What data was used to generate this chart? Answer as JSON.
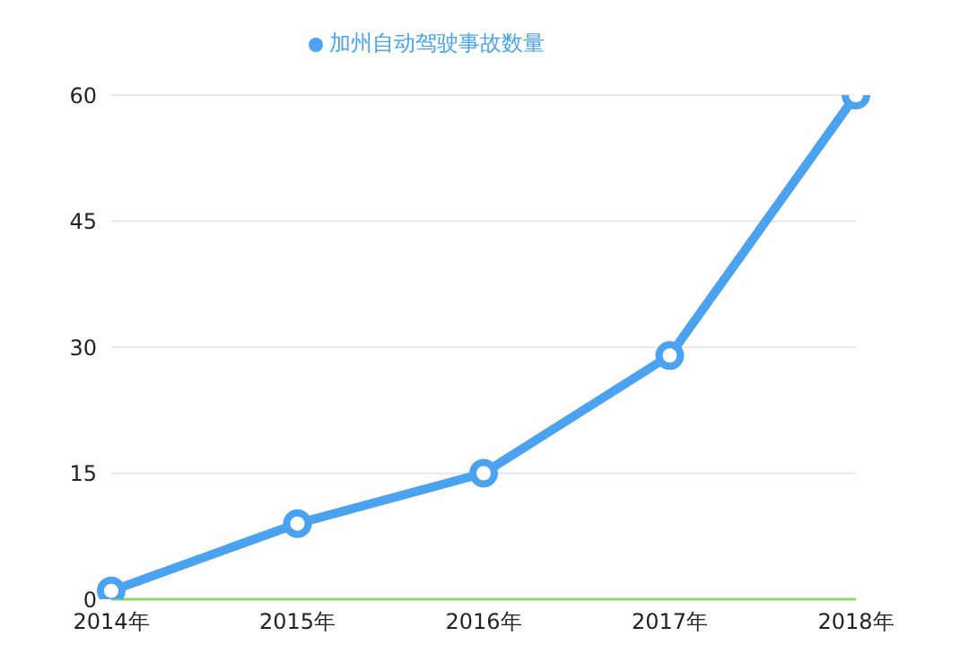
{
  "chart_data": {
    "type": "line",
    "categories": [
      "2014年",
      "2015年",
      "2016年",
      "2017年",
      "2018年"
    ],
    "series": [
      {
        "name": "加州自动驾驶事故数量",
        "color": "#4ba3f0",
        "values": [
          1,
          9,
          15,
          29,
          60
        ]
      }
    ],
    "ylim": [
      0,
      60
    ],
    "yticks": [
      0,
      15,
      30,
      45,
      60
    ],
    "grid": "y",
    "legend": "top",
    "marker": "circle",
    "line_style": "solid"
  }
}
